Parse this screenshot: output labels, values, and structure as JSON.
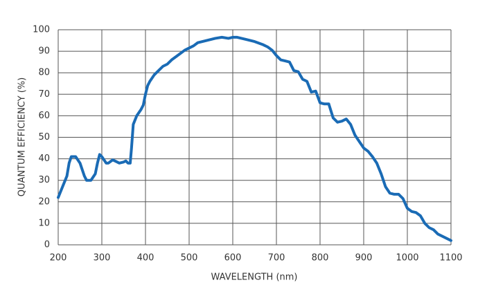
{
  "chart_data": {
    "type": "line",
    "x_label": "WAVELENGTH (nm)",
    "y_label": "QUANTUM EFFICIENCY (%)",
    "x": [
      200,
      210,
      220,
      225,
      230,
      240,
      250,
      260,
      265,
      275,
      285,
      290,
      295,
      300,
      310,
      315,
      325,
      330,
      340,
      350,
      355,
      360,
      365,
      368,
      372,
      380,
      390,
      395,
      400,
      405,
      410,
      420,
      430,
      440,
      450,
      460,
      480,
      490,
      500,
      510,
      520,
      540,
      560,
      575,
      590,
      600,
      610,
      630,
      650,
      670,
      680,
      690,
      700,
      710,
      720,
      730,
      740,
      750,
      760,
      770,
      780,
      790,
      800,
      810,
      820,
      830,
      840,
      850,
      860,
      870,
      880,
      890,
      900,
      910,
      920,
      930,
      940,
      950,
      960,
      970,
      980,
      990,
      1000,
      1010,
      1020,
      1030,
      1040,
      1050,
      1060,
      1070,
      1080,
      1090,
      1100
    ],
    "series": [
      {
        "name": "Quantum efficiency",
        "color": "#1a6bb5",
        "values": [
          22,
          27,
          32,
          38,
          41,
          41,
          38,
          32,
          30,
          30,
          33,
          38,
          42,
          41,
          38,
          38,
          39.5,
          39,
          38,
          38.5,
          39,
          38,
          38,
          45,
          56,
          60,
          63,
          65,
          70,
          74,
          76,
          79,
          81,
          83,
          84,
          86,
          89,
          90.5,
          91.5,
          92.5,
          94,
          95,
          96,
          96.5,
          96,
          96.5,
          96.5,
          95.5,
          94.5,
          93,
          92,
          90.5,
          88,
          86,
          85.5,
          85,
          81,
          80.5,
          77,
          76,
          71,
          71.5,
          66,
          65.5,
          65.5,
          59,
          57,
          57.5,
          58.5,
          56,
          51,
          48,
          45,
          43.5,
          41,
          38,
          33,
          27,
          24,
          23.5,
          23.5,
          21.5,
          17,
          15.5,
          15,
          13.5,
          10,
          8,
          7,
          5,
          4,
          3,
          2
        ]
      }
    ],
    "xlim": [
      200,
      1100
    ],
    "xticks": [
      200,
      300,
      400,
      500,
      600,
      700,
      800,
      900,
      1000,
      1100
    ],
    "ylim": [
      0,
      100
    ],
    "yticks": [
      0,
      10,
      20,
      30,
      40,
      50,
      60,
      70,
      80,
      90,
      100
    ],
    "grid": true
  }
}
